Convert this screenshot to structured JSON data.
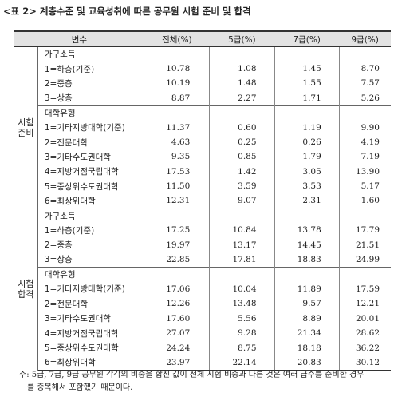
{
  "caption": "<표 2> 계층수준 및 교육성취에 따른 공무원 시험 준비 및 합격",
  "columns": [
    "변수",
    "전체(%)",
    "5급(%)",
    "7급(%)",
    "9급(%)"
  ],
  "sections": [
    {
      "label_line1": "시험",
      "label_line2": "준비",
      "groups": [
        {
          "title": "가구소득",
          "rows": [
            {
              "label": "1=하층(기준)",
              "v": [
                "10.78",
                "1.08",
                "1.45",
                "8.70"
              ]
            },
            {
              "label": "2=중층",
              "v": [
                "10.19",
                "1.48",
                "1.55",
                "7.57"
              ]
            },
            {
              "label": "3=상층",
              "v": [
                "8.87",
                "2.27",
                "1.71",
                "5.26"
              ]
            }
          ]
        },
        {
          "title": "대학유형",
          "rows": [
            {
              "label": "1=기타지방대학(기준)",
              "v": [
                "11.37",
                "0.60",
                "1.19",
                "9.90"
              ]
            },
            {
              "label": "2=전문대학",
              "v": [
                "4.63",
                "0.25",
                "0.26",
                "4.19"
              ]
            },
            {
              "label": "3=기타수도권대학",
              "v": [
                "9.35",
                "0.85",
                "1.79",
                "7.19"
              ]
            },
            {
              "label": "4=지방거점국립대학",
              "v": [
                "17.53",
                "1.42",
                "3.05",
                "13.90"
              ]
            },
            {
              "label": "5=중상위수도권대학",
              "v": [
                "11.50",
                "3.59",
                "3.53",
                "5.17"
              ]
            },
            {
              "label": "6=최상위대학",
              "v": [
                "12.31",
                "9.07",
                "2.31",
                "1.60"
              ]
            }
          ]
        }
      ]
    },
    {
      "label_line1": "시험",
      "label_line2": "합격",
      "groups": [
        {
          "title": "가구소득",
          "rows": [
            {
              "label": "1=하층(기준)",
              "v": [
                "17.25",
                "10.84",
                "13.78",
                "17.79"
              ]
            },
            {
              "label": "2=중층",
              "v": [
                "19.97",
                "13.17",
                "14.45",
                "21.51"
              ]
            },
            {
              "label": "3=상층",
              "v": [
                "22.85",
                "17.81",
                "18.83",
                "24.99"
              ]
            }
          ]
        },
        {
          "title": "대학유형",
          "rows": [
            {
              "label": "1=기타지방대학(기준)",
              "v": [
                "17.06",
                "10.04",
                "11.89",
                "17.59"
              ]
            },
            {
              "label": "2=전문대학",
              "v": [
                "12.26",
                "13.48",
                "9.57",
                "12.21"
              ]
            },
            {
              "label": "3=기타수도권대학",
              "v": [
                "17.60",
                "5.56",
                "8.89",
                "20.01"
              ]
            },
            {
              "label": "4=지방거점국립대학",
              "v": [
                "27.07",
                "9.28",
                "21.34",
                "28.62"
              ]
            },
            {
              "label": "5=중상위수도권대학",
              "v": [
                "24.24",
                "8.75",
                "18.18",
                "36.22"
              ]
            },
            {
              "label": "6=최상위대학",
              "v": [
                "23.97",
                "22.14",
                "20.83",
                "30.12"
              ]
            }
          ]
        }
      ]
    }
  ],
  "note_line1": "주: 5급, 7급, 9급 공무원 각각의 비중을 합친 값이 전체 시험 비중과 다른 것은 여러 급수를 준비한 경우",
  "note_line2": "를 중복해서 포함했기 때문이다."
}
